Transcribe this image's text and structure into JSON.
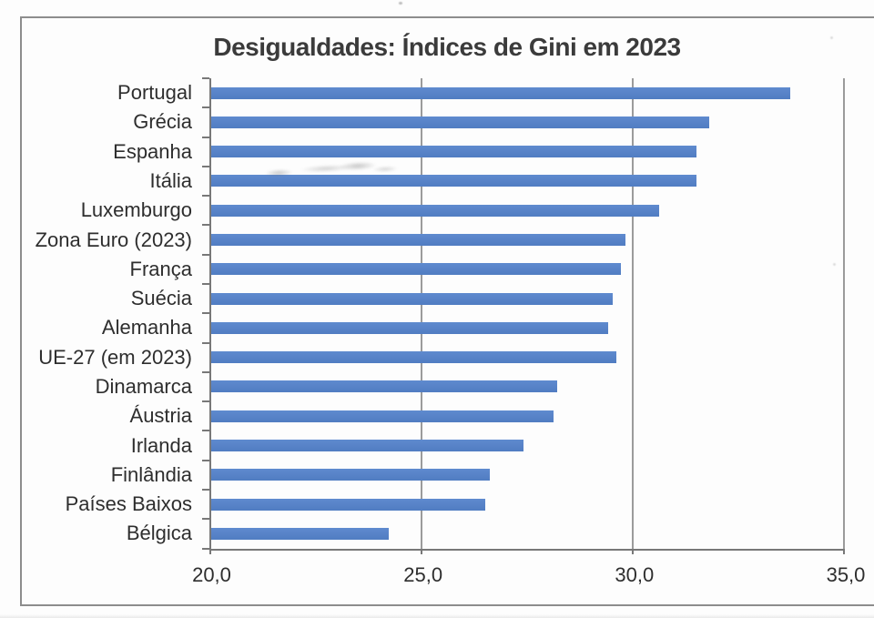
{
  "page": {
    "background": "#fdfdfd",
    "kind": "scanned printed chart"
  },
  "chart_data": {
    "type": "bar",
    "orientation": "horizontal",
    "title": "Desigualdades: Índices de Gini em 2023",
    "categories": [
      "Portugal",
      "Grécia",
      "Espanha",
      "Itália",
      "Luxemburgo",
      "Zona Euro (2023)",
      "França",
      "Suécia",
      "Alemanha",
      "UE-27 (em 2023)",
      "Dinamarca",
      "Áustria",
      "Irlanda",
      "Finlândia",
      "Países Baixos",
      "Bélgica"
    ],
    "values": [
      33.7,
      31.8,
      31.5,
      31.5,
      30.6,
      29.8,
      29.7,
      29.5,
      29.4,
      29.6,
      28.2,
      28.1,
      27.4,
      26.6,
      26.5,
      24.2
    ],
    "xlabel": "",
    "ylabel": "",
    "xlim": [
      20.0,
      35.0
    ],
    "x_ticks": {
      "values": [
        20,
        25,
        30,
        35
      ],
      "labels": [
        "20,0",
        "25,0",
        "30,0",
        "35,0"
      ]
    },
    "grid": "vertical gridlines at x ticks",
    "legend": "none",
    "colors": {
      "bar": "#5583cc",
      "axis": "#787878",
      "gridline": "#9b9b9b",
      "text": "#2e2e2e",
      "title": "#3b3b3b",
      "frame": "#8d8d8d"
    }
  }
}
